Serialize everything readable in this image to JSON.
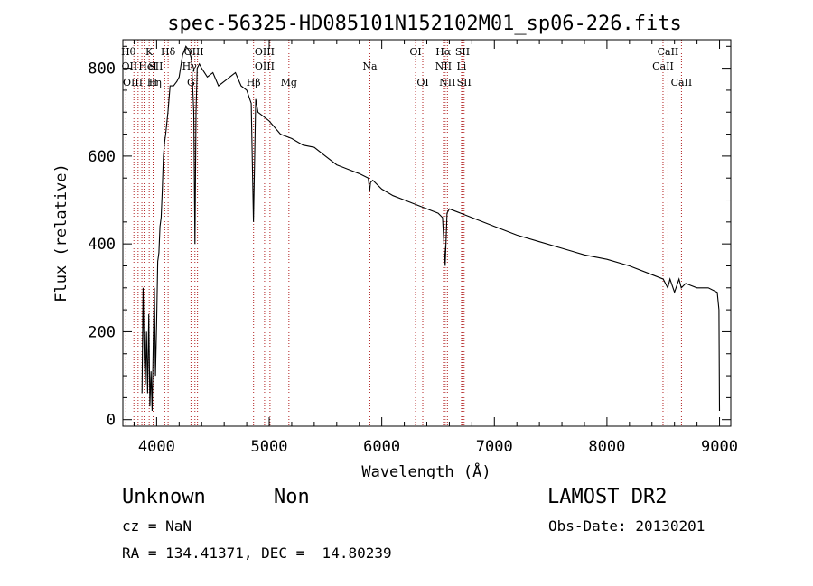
{
  "chart_data": {
    "type": "line",
    "title": "spec-56325-HD085101N152102M01_sp06-226.fits",
    "xlabel": "Wavelength (Å)",
    "ylabel": "Flux (relative)",
    "xlim": [
      3700,
      9100
    ],
    "ylim": [
      -15,
      865
    ],
    "xticks": [
      {
        "v": 4000,
        "label": "4000"
      },
      {
        "v": 5000,
        "label": "5000"
      },
      {
        "v": 6000,
        "label": "6000"
      },
      {
        "v": 7000,
        "label": "7000"
      },
      {
        "v": 8000,
        "label": "8000"
      },
      {
        "v": 9000,
        "label": "9000"
      }
    ],
    "yticks": [
      {
        "v": 0,
        "label": "0"
      },
      {
        "v": 200,
        "label": "200"
      },
      {
        "v": 400,
        "label": "400"
      },
      {
        "v": 600,
        "label": "600"
      },
      {
        "v": 800,
        "label": "800"
      }
    ],
    "line_color": "#000000",
    "marker_color": "#b22222",
    "series": [
      {
        "x": [
          3870,
          3880,
          3890,
          3900,
          3910,
          3920,
          3930,
          3940,
          3950,
          3960,
          3970,
          3980,
          3990,
          4000,
          4010,
          4020,
          4030,
          4040,
          4050,
          4060,
          4070,
          4080,
          4100,
          4120,
          4150,
          4180,
          4200,
          4230,
          4260,
          4290,
          4310,
          4330,
          4340,
          4350,
          4360,
          4380,
          4400,
          4450,
          4500,
          4550,
          4600,
          4650,
          4700,
          4750,
          4800,
          4840,
          4860,
          4880,
          4900,
          4950,
          5000,
          5100,
          5200,
          5300,
          5400,
          5500,
          5600,
          5700,
          5800,
          5880,
          5892,
          5900,
          5920,
          6000,
          6100,
          6200,
          6300,
          6400,
          6500,
          6540,
          6563,
          6580,
          6600,
          6700,
          6800,
          7000,
          7200,
          7400,
          7600,
          7800,
          8000,
          8200,
          8400,
          8500,
          8540,
          8560,
          8600,
          8640,
          8660,
          8700,
          8800,
          8900,
          8980,
          8995,
          9000
        ],
        "y": [
          60,
          300,
          140,
          80,
          200,
          60,
          240,
          30,
          110,
          20,
          180,
          300,
          100,
          220,
          360,
          380,
          440,
          460,
          520,
          600,
          630,
          650,
          700,
          760,
          760,
          770,
          780,
          830,
          850,
          840,
          820,
          700,
          400,
          700,
          800,
          810,
          800,
          780,
          790,
          760,
          770,
          780,
          790,
          760,
          750,
          720,
          450,
          730,
          700,
          690,
          680,
          650,
          640,
          625,
          620,
          600,
          580,
          570,
          560,
          550,
          520,
          540,
          545,
          525,
          510,
          500,
          490,
          480,
          470,
          460,
          350,
          470,
          480,
          470,
          460,
          440,
          420,
          405,
          390,
          375,
          365,
          350,
          330,
          320,
          300,
          320,
          290,
          320,
          300,
          310,
          300,
          300,
          290,
          250,
          20
        ]
      }
    ],
    "line_markers": [
      {
        "label": "Hθ",
        "wl": 3798,
        "row": 0,
        "o": -6
      },
      {
        "label": "OII",
        "wl": 3727,
        "row": 1,
        "o": 4
      },
      {
        "label": "OIII",
        "wl": 3869,
        "row": 2,
        "o": -10
      },
      {
        "label": "Hη",
        "wl": 3835,
        "row": 2,
        "o": 18
      },
      {
        "label": "K",
        "wl": 3934,
        "row": 0,
        "o": 0
      },
      {
        "label": "H",
        "wl": 3969,
        "row": 2,
        "o": 0
      },
      {
        "label": "HeI",
        "wl": 3889,
        "row": 1,
        "o": 4
      },
      {
        "label": "SII",
        "wl": 4072,
        "row": 1,
        "o": -10
      },
      {
        "label": "Hδ",
        "wl": 4102,
        "row": 0,
        "o": 0
      },
      {
        "label": "OIII",
        "wl": 4363,
        "row": 0,
        "o": -4
      },
      {
        "label": "Hγ",
        "wl": 4340,
        "row": 1,
        "o": -6
      },
      {
        "label": "G",
        "wl": 4305,
        "row": 2,
        "o": 0
      },
      {
        "label": "Hβ",
        "wl": 4861,
        "row": 2,
        "o": 0
      },
      {
        "label": "OIII",
        "wl": 5007,
        "row": 0,
        "o": -6
      },
      {
        "label": "OIII",
        "wl": 4959,
        "row": 1,
        "o": 0
      },
      {
        "label": "Mg",
        "wl": 5175,
        "row": 2,
        "o": 0
      },
      {
        "label": "Na",
        "wl": 5894,
        "row": 1,
        "o": 0
      },
      {
        "label": "OI",
        "wl": 6300,
        "row": 0,
        "o": 0
      },
      {
        "label": "OI",
        "wl": 6364,
        "row": 2,
        "o": 0
      },
      {
        "label": "Hα",
        "wl": 6563,
        "row": 0,
        "o": -2
      },
      {
        "label": "NII",
        "wl": 6548,
        "row": 1,
        "o": 0
      },
      {
        "label": "NII",
        "wl": 6583,
        "row": 2,
        "o": 0
      },
      {
        "label": "SII",
        "wl": 6717,
        "row": 0,
        "o": 0
      },
      {
        "label": "Li",
        "wl": 6708,
        "row": 1,
        "o": 0
      },
      {
        "label": "SII",
        "wl": 6731,
        "row": 2,
        "o": 0
      },
      {
        "label": "CaII",
        "wl": 8542,
        "row": 0,
        "o": 0
      },
      {
        "label": "CaII",
        "wl": 8498,
        "row": 1,
        "o": 0
      },
      {
        "label": "CaII",
        "wl": 8662,
        "row": 2,
        "o": 0
      }
    ]
  },
  "footer": {
    "object_type": "Unknown",
    "object_class": "Non",
    "survey": "LAMOST DR2",
    "redshift": "cz = NaN",
    "obs_date": "Obs-Date: 20130201",
    "coords": "RA = 134.41371, DEC =  14.80239"
  }
}
